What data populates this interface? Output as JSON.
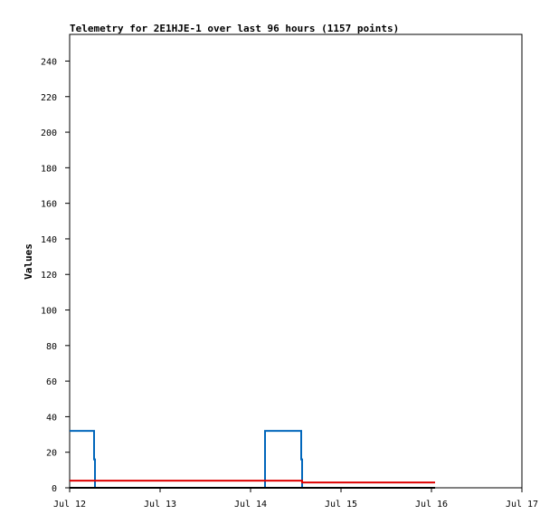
{
  "chart_data": {
    "type": "line",
    "title": "Telemetry for 2E1HJE-1 over last 96 hours (1157 points)",
    "xlabel": "",
    "ylabel": "Values",
    "x_ticks": [
      "Jul 12",
      "Jul 13",
      "Jul 14",
      "Jul 15",
      "Jul 16",
      "Jul 17"
    ],
    "xlim": [
      0,
      5
    ],
    "x_unit": "days from Jul 12 00:00",
    "y_ticks": [
      0,
      20,
      40,
      60,
      80,
      100,
      120,
      140,
      160,
      180,
      200,
      220,
      240
    ],
    "ylim": [
      0,
      255
    ],
    "grid": false,
    "legend": "none",
    "series": [
      {
        "color": "#0066bb",
        "step": true,
        "x": [
          0,
          0.27,
          0.27,
          0.28,
          0.28,
          2.16,
          2.16,
          2.56,
          2.56,
          2.57,
          2.57,
          4.04
        ],
        "y": [
          32,
          32,
          16,
          16,
          0,
          0,
          32,
          32,
          16,
          16,
          0,
          0
        ]
      },
      {
        "color": "#dd0000",
        "step": true,
        "x": [
          0,
          2.57,
          2.57,
          4.04
        ],
        "y": [
          4,
          4,
          3,
          3
        ]
      },
      {
        "color": "#000000",
        "step": false,
        "x": [
          0,
          4.04
        ],
        "y": [
          0,
          0
        ]
      }
    ]
  }
}
